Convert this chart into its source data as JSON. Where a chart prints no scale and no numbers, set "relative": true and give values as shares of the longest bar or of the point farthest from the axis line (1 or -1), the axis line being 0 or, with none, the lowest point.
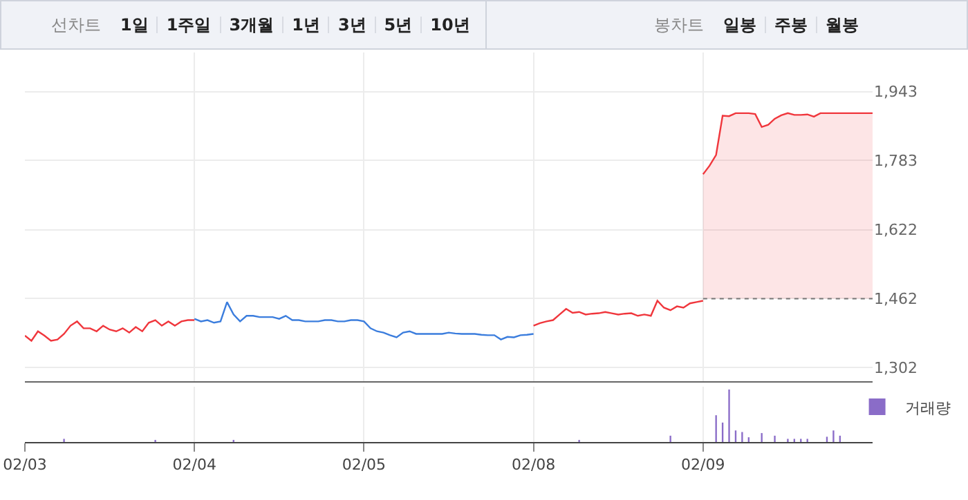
{
  "chart_data": [
    {
      "type": "line",
      "annotations": [
        "선차트",
        "1일",
        "1주일",
        "3개월",
        "1년",
        "3년",
        "5년",
        "10년",
        "봉차트",
        "일봉",
        "주봉",
        "월봉"
      ],
      "categories": [
        null,
        null,
        null,
        null,
        null,
        null,
        null,
        null,
        null,
        null,
        null,
        null,
        null,
        null,
        null,
        null,
        null,
        null,
        null,
        null,
        null,
        null,
        null,
        null,
        null,
        null,
        null,
        null,
        null,
        null,
        null,
        null,
        null,
        null,
        null,
        null,
        null,
        null,
        null,
        null,
        null,
        null,
        null,
        null,
        null,
        null,
        null,
        null,
        null,
        null,
        null,
        null,
        null,
        null,
        null,
        null,
        null,
        null,
        null,
        null,
        null,
        null,
        null,
        null,
        null,
        null,
        null,
        null,
        null,
        null,
        null,
        null,
        null,
        null,
        null,
        null,
        null,
        null,
        null,
        null,
        null,
        null,
        null,
        null,
        null,
        null,
        null,
        null,
        null,
        null,
        null,
        null,
        null,
        null,
        null,
        null,
        null,
        null,
        null,
        null,
        null,
        null,
        null,
        null,
        null,
        null,
        null,
        null,
        null,
        null,
        null,
        null,
        null,
        null,
        null,
        null,
        null,
        null,
        null,
        null,
        null,
        null,
        null,
        null,
        null,
        null,
        null,
        null,
        null,
        null,
        null
      ],
      "ylim": [
        1270,
        2034
      ],
      "yticks": [
        {
          "value": 1302,
          "label": "1,302"
        },
        {
          "value": 1462,
          "label": "1,462"
        },
        {
          "value": 1622,
          "label": "1,622"
        },
        {
          "value": 1783,
          "label": "1,783"
        },
        {
          "value": 1943,
          "label": "1,943"
        }
      ],
      "tick_labels": "y",
      "grid": true,
      "legend": false,
      "ref_lines": [
        {
          "axis": "y",
          "value": 1462,
          "color": "#777777",
          "line_style": "dotted"
        }
      ],
      "series": [
        {
          "color": "#f0363c",
          "values": [
            1376,
            1364,
            1386,
            1376,
            1364,
            1367,
            1380,
            1399,
            1409,
            1393,
            1393,
            1386,
            1399,
            1390,
            1386,
            1393,
            1383,
            1396,
            1386,
            1406,
            1412,
            1399,
            1409,
            1399,
            1409,
            1412,
            1412,
            null,
            null,
            null,
            null,
            null,
            null,
            null,
            null,
            null,
            null,
            null,
            null,
            null,
            null,
            null,
            null,
            null,
            null,
            null,
            null,
            null,
            null,
            null,
            null,
            null,
            null,
            null,
            null,
            null,
            null,
            null,
            null,
            null,
            null,
            null,
            null,
            null,
            null,
            null,
            null,
            null,
            null,
            null,
            null,
            null,
            null,
            null,
            null,
            null,
            null,
            null,
            null,
            null,
            null,
            null,
            null,
            null,
            null,
            null,
            null,
            null,
            null,
            null,
            null,
            null,
            null,
            null,
            null,
            null,
            null,
            null,
            null,
            null,
            null,
            null,
            null,
            null,
            null,
            null,
            null,
            null,
            null,
            null,
            null,
            null,
            null,
            null,
            null,
            null,
            null,
            null,
            null,
            null,
            null,
            null,
            null,
            null,
            null,
            null,
            null,
            null,
            null,
            null,
            null
          ]
        },
        {
          "color": "#3b7ddd",
          "values": [
            null,
            null,
            null,
            null,
            null,
            null,
            null,
            null,
            null,
            null,
            null,
            null,
            null,
            null,
            null,
            null,
            null,
            null,
            null,
            null,
            null,
            null,
            null,
            null,
            null,
            null,
            1415,
            1409,
            1412,
            1406,
            1409,
            1454,
            1425,
            1409,
            1422,
            1422,
            1419,
            1419,
            1419,
            1415,
            1422,
            1412,
            1412,
            1409,
            1409,
            1409,
            1412,
            1412,
            1409,
            1409,
            1412,
            1412,
            1409,
            1393,
            1386,
            1383,
            1377,
            1372,
            1383,
            1386,
            1380,
            1380,
            1380,
            1380,
            1380,
            1383,
            1381,
            1380,
            1380,
            1380,
            1378,
            1377,
            1377,
            1367,
            1373,
            1372,
            1377,
            1378,
            1380,
            null,
            null,
            null,
            null,
            null,
            null,
            null,
            null,
            null,
            null,
            null,
            null,
            null,
            null,
            null,
            null,
            null,
            null,
            null,
            null,
            null,
            null,
            null,
            null,
            null,
            null,
            null,
            null,
            null,
            null,
            null,
            null,
            null,
            null,
            null,
            null,
            null,
            null,
            null,
            null,
            null,
            null,
            null,
            null,
            null,
            null,
            null,
            null,
            null,
            null,
            null,
            null
          ]
        },
        {
          "color": "#f0363c",
          "values": [
            null,
            null,
            null,
            null,
            null,
            null,
            null,
            null,
            null,
            null,
            null,
            null,
            null,
            null,
            null,
            null,
            null,
            null,
            null,
            null,
            null,
            null,
            null,
            null,
            null,
            null,
            null,
            null,
            null,
            null,
            null,
            null,
            null,
            null,
            null,
            null,
            null,
            null,
            null,
            null,
            null,
            null,
            null,
            null,
            null,
            null,
            null,
            null,
            null,
            null,
            null,
            null,
            null,
            null,
            null,
            null,
            null,
            null,
            null,
            null,
            null,
            null,
            null,
            null,
            null,
            null,
            null,
            null,
            null,
            null,
            null,
            null,
            null,
            null,
            null,
            null,
            null,
            null,
            1399,
            1405,
            1409,
            1412,
            1425,
            1438,
            1429,
            1431,
            1425,
            1427,
            1428,
            1431,
            1428,
            1425,
            1427,
            1428,
            1422,
            1425,
            1422,
            1457,
            1441,
            1435,
            1444,
            1441,
            1451,
            1454,
            1457,
            null,
            null,
            null,
            null,
            null,
            null,
            null,
            null,
            null,
            null,
            null,
            null,
            null,
            null,
            null,
            null,
            null,
            null,
            null,
            null,
            null,
            null,
            null,
            null,
            null,
            null
          ]
        },
        {
          "type": "area",
          "color": "#f0363c",
          "values": [
            null,
            null,
            null,
            null,
            null,
            null,
            null,
            null,
            null,
            null,
            null,
            null,
            null,
            null,
            null,
            null,
            null,
            null,
            null,
            null,
            null,
            null,
            null,
            null,
            null,
            null,
            null,
            null,
            null,
            null,
            null,
            null,
            null,
            null,
            null,
            null,
            null,
            null,
            null,
            null,
            null,
            null,
            null,
            null,
            null,
            null,
            null,
            null,
            null,
            null,
            null,
            null,
            null,
            null,
            null,
            null,
            null,
            null,
            null,
            null,
            null,
            null,
            null,
            null,
            null,
            null,
            null,
            null,
            null,
            null,
            null,
            null,
            null,
            null,
            null,
            null,
            null,
            null,
            null,
            null,
            null,
            null,
            null,
            null,
            null,
            null,
            null,
            null,
            null,
            null,
            null,
            null,
            null,
            null,
            null,
            null,
            null,
            null,
            null,
            null,
            null,
            null,
            null,
            null,
            1751,
            1771,
            1796,
            1887,
            1886,
            1893,
            1893,
            1893,
            1891,
            1861,
            1866,
            1880,
            1888,
            1893,
            1889,
            1889,
            1890,
            1885,
            1893,
            1893,
            1893,
            1893,
            1893,
            1893,
            1893,
            1893,
            1893
          ]
        }
      ]
    },
    {
      "type": "bar",
      "relative": true,
      "legend": "top right",
      "tick_labels": "x",
      "grid": "x",
      "categories": [
        "02/03",
        null,
        null,
        null,
        null,
        null,
        null,
        null,
        null,
        null,
        null,
        null,
        null,
        null,
        null,
        null,
        null,
        null,
        null,
        null,
        null,
        null,
        null,
        null,
        null,
        null,
        "02/04",
        null,
        null,
        null,
        null,
        null,
        null,
        null,
        null,
        null,
        null,
        null,
        null,
        null,
        null,
        null,
        null,
        null,
        null,
        null,
        null,
        null,
        null,
        null,
        null,
        null,
        "02/05",
        null,
        null,
        null,
        null,
        null,
        null,
        null,
        null,
        null,
        null,
        null,
        null,
        null,
        null,
        null,
        null,
        null,
        null,
        null,
        null,
        null,
        null,
        null,
        null,
        null,
        "02/08",
        null,
        null,
        null,
        null,
        null,
        null,
        null,
        null,
        null,
        null,
        null,
        null,
        null,
        null,
        null,
        null,
        null,
        null,
        null,
        null,
        null,
        null,
        null,
        null,
        null,
        "02/09",
        null,
        null,
        null,
        null,
        null,
        null,
        null,
        null,
        null,
        null,
        null,
        null,
        null,
        null,
        null,
        null,
        null,
        null,
        null,
        null,
        null,
        null,
        null,
        null,
        null,
        null
      ],
      "series": [
        {
          "name": "거래량",
          "color": "#8a6cc8",
          "values": [
            null,
            null,
            null,
            null,
            null,
            null,
            0.06,
            null,
            null,
            null,
            null,
            null,
            null,
            null,
            null,
            null,
            null,
            null,
            null,
            null,
            0.04,
            null,
            null,
            null,
            null,
            null,
            null,
            null,
            null,
            null,
            null,
            null,
            0.04,
            null,
            null,
            null,
            null,
            null,
            null,
            null,
            null,
            null,
            null,
            null,
            null,
            null,
            null,
            null,
            null,
            null,
            null,
            null,
            null,
            null,
            null,
            null,
            null,
            null,
            null,
            null,
            null,
            null,
            null,
            null,
            null,
            null,
            null,
            null,
            null,
            null,
            null,
            null,
            null,
            null,
            null,
            null,
            null,
            null,
            null,
            null,
            null,
            null,
            null,
            null,
            null,
            0.04,
            null,
            null,
            null,
            null,
            null,
            null,
            null,
            null,
            null,
            null,
            null,
            null,
            null,
            0.12,
            null,
            null,
            null,
            null,
            null,
            null,
            0.51,
            0.37,
            1,
            0.22,
            0.19,
            0.09,
            null,
            0.17,
            null,
            0.12,
            null,
            0.06,
            0.06,
            0.06,
            0.06,
            null,
            null,
            0.1,
            0.22,
            0.12,
            null,
            null,
            null,
            null,
            null
          ]
        }
      ]
    }
  ]
}
